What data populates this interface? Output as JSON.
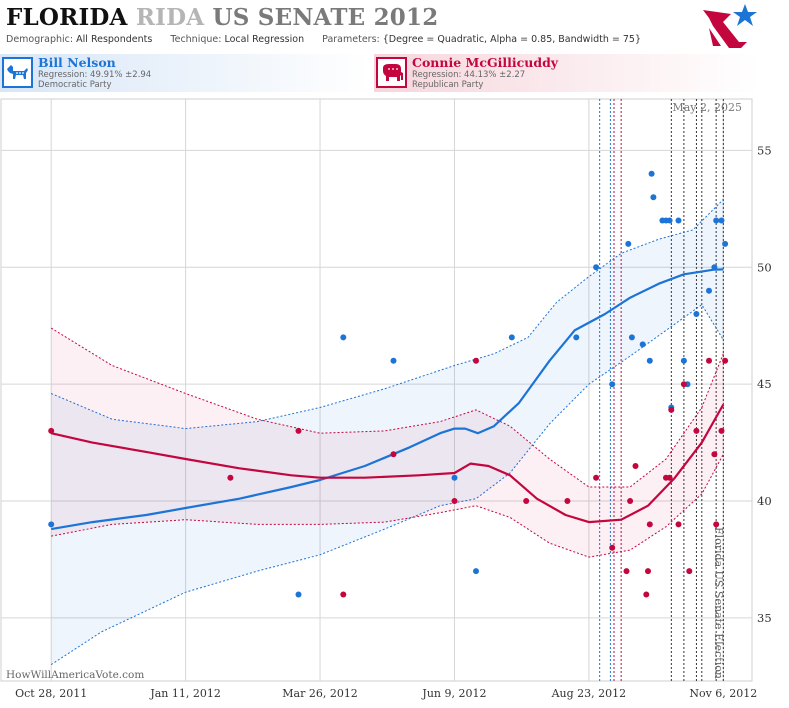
{
  "header": {
    "title_state": "FLORIDA",
    "title_ghost": "RIDA",
    "title_race": "US SENATE 2012",
    "meta": {
      "demographic_label": "Demographic:",
      "demographic_value": "All Respondents",
      "technique_label": "Technique:",
      "technique_value": "Local Regression",
      "parameters_label": "Parameters:",
      "parameters_value": "{Degree = Quadratic, Alpha = 0.85, Bandwidth = 75}"
    }
  },
  "candidates": {
    "dem": {
      "name": "Bill Nelson",
      "regression": "Regression: 49.91% ±2.94",
      "party": "Democratic Party",
      "icon": "donkey-icon",
      "color": "#1c74d6"
    },
    "rep": {
      "name": "Connie McGillicuddy",
      "regression": "Regression: 44.13% ±2.27",
      "party": "Republican Party",
      "icon": "elephant-icon",
      "color": "#c4063f"
    }
  },
  "chart_data": {
    "type": "scatter",
    "date_label": "May 2, 2025",
    "event_label": "Florida US Senate Election",
    "watermark": "HowWillAmericaVote.com",
    "x_axis": {
      "range": [
        "2011-09-30",
        "2012-11-22"
      ],
      "ticks": [
        {
          "date": "2011-10-28",
          "label": "Oct 28, 2011"
        },
        {
          "date": "2012-01-11",
          "label": "Jan 11, 2012"
        },
        {
          "date": "2012-03-26",
          "label": "Mar 26, 2012"
        },
        {
          "date": "2012-06-09",
          "label": "Jun 9, 2012"
        },
        {
          "date": "2012-08-23",
          "label": "Aug 23, 2012"
        },
        {
          "date": "2012-11-06",
          "label": "Nov 6, 2012"
        }
      ]
    },
    "y_axis": {
      "range": [
        32.3,
        57.2
      ],
      "ticks": [
        35,
        40,
        45,
        50,
        55
      ],
      "side": "right",
      "grid": true
    },
    "vertical_lines": [
      {
        "date": "2012-08-29",
        "color": "#1c74d6"
      },
      {
        "date": "2012-09-04",
        "color": "#1c74d6"
      },
      {
        "date": "2012-09-06",
        "color": "#c4063f"
      },
      {
        "date": "2012-09-10",
        "color": "#c4063f"
      },
      {
        "date": "2012-10-08",
        "color": "#333333"
      },
      {
        "date": "2012-10-15",
        "color": "#333333"
      },
      {
        "date": "2012-10-22",
        "color": "#333333"
      },
      {
        "date": "2012-10-25",
        "color": "#333333"
      },
      {
        "date": "2012-11-02",
        "color": "#333333"
      },
      {
        "date": "2012-11-06",
        "color": "#333333"
      }
    ],
    "series": [
      {
        "name": "Bill Nelson",
        "color": "#1c74d6",
        "points": [
          [
            "2011-10-28",
            39
          ],
          [
            "2012-03-14",
            36
          ],
          [
            "2012-04-08",
            47
          ],
          [
            "2012-05-06",
            46
          ],
          [
            "2012-06-09",
            41
          ],
          [
            "2012-06-21",
            37
          ],
          [
            "2012-07-11",
            47
          ],
          [
            "2012-08-16",
            47
          ],
          [
            "2012-08-27",
            50
          ],
          [
            "2012-09-05",
            45
          ],
          [
            "2012-09-14",
            51
          ],
          [
            "2012-09-16",
            47
          ],
          [
            "2012-09-22",
            46.7
          ],
          [
            "2012-09-26",
            46
          ],
          [
            "2012-09-27",
            54
          ],
          [
            "2012-09-28",
            53
          ],
          [
            "2012-10-03",
            52
          ],
          [
            "2012-10-05",
            52
          ],
          [
            "2012-10-07",
            52
          ],
          [
            "2012-10-08",
            44
          ],
          [
            "2012-10-12",
            52
          ],
          [
            "2012-10-15",
            46
          ],
          [
            "2012-10-17",
            45
          ],
          [
            "2012-10-22",
            48
          ],
          [
            "2012-10-29",
            49
          ],
          [
            "2012-11-01",
            50
          ],
          [
            "2012-11-02",
            52
          ],
          [
            "2012-11-05",
            52
          ],
          [
            "2012-11-07",
            51
          ]
        ],
        "trend": [
          [
            "2011-10-28",
            38.8
          ],
          [
            "2011-11-20",
            39.1
          ],
          [
            "2011-12-20",
            39.4
          ],
          [
            "2012-01-11",
            39.7
          ],
          [
            "2012-02-10",
            40.1
          ],
          [
            "2012-03-10",
            40.6
          ],
          [
            "2012-03-26",
            40.9
          ],
          [
            "2012-04-20",
            41.5
          ],
          [
            "2012-05-15",
            42.3
          ],
          [
            "2012-06-01",
            42.9
          ],
          [
            "2012-06-09",
            43.1
          ],
          [
            "2012-06-15",
            43.1
          ],
          [
            "2012-06-22",
            42.9
          ],
          [
            "2012-07-01",
            43.2
          ],
          [
            "2012-07-15",
            44.2
          ],
          [
            "2012-08-01",
            46.0
          ],
          [
            "2012-08-15",
            47.3
          ],
          [
            "2012-09-01",
            48.0
          ],
          [
            "2012-09-15",
            48.7
          ],
          [
            "2012-10-01",
            49.3
          ],
          [
            "2012-10-15",
            49.7
          ],
          [
            "2012-11-01",
            49.9
          ],
          [
            "2012-11-06",
            49.91
          ]
        ],
        "band_upper": [
          [
            "2011-10-28",
            44.6
          ],
          [
            "2011-12-01",
            43.5
          ],
          [
            "2012-01-11",
            43.1
          ],
          [
            "2012-02-20",
            43.4
          ],
          [
            "2012-03-26",
            44.0
          ],
          [
            "2012-05-01",
            44.8
          ],
          [
            "2012-06-09",
            45.8
          ],
          [
            "2012-07-01",
            46.3
          ],
          [
            "2012-07-20",
            47.0
          ],
          [
            "2012-08-05",
            48.5
          ],
          [
            "2012-08-23",
            49.6
          ],
          [
            "2012-09-10",
            50.6
          ],
          [
            "2012-10-01",
            51.2
          ],
          [
            "2012-10-20",
            51.6
          ],
          [
            "2012-11-06",
            52.9
          ]
        ],
        "band_lower": [
          [
            "2011-10-28",
            33.0
          ],
          [
            "2011-11-25",
            34.4
          ],
          [
            "2012-01-11",
            36.1
          ],
          [
            "2012-02-20",
            37.0
          ],
          [
            "2012-03-26",
            37.7
          ],
          [
            "2012-05-01",
            38.8
          ],
          [
            "2012-06-01",
            39.8
          ],
          [
            "2012-06-21",
            40.1
          ],
          [
            "2012-07-10",
            41.2
          ],
          [
            "2012-08-01",
            43.3
          ],
          [
            "2012-08-23",
            45.0
          ],
          [
            "2012-09-15",
            46.2
          ],
          [
            "2012-10-05",
            47.3
          ],
          [
            "2012-10-25",
            48.4
          ],
          [
            "2012-11-06",
            46.9
          ]
        ]
      },
      {
        "name": "Connie McGillicuddy",
        "color": "#c4063f",
        "points": [
          [
            "2011-10-28",
            43
          ],
          [
            "2012-02-05",
            41
          ],
          [
            "2012-03-14",
            43
          ],
          [
            "2012-04-08",
            36
          ],
          [
            "2012-05-06",
            42
          ],
          [
            "2012-06-09",
            40
          ],
          [
            "2012-06-21",
            46
          ],
          [
            "2012-07-19",
            40
          ],
          [
            "2012-08-11",
            40
          ],
          [
            "2012-08-27",
            41
          ],
          [
            "2012-09-05",
            38
          ],
          [
            "2012-09-13",
            37
          ],
          [
            "2012-09-15",
            40
          ],
          [
            "2012-09-18",
            41.5
          ],
          [
            "2012-09-24",
            36
          ],
          [
            "2012-09-25",
            37
          ],
          [
            "2012-09-26",
            39
          ],
          [
            "2012-10-05",
            41
          ],
          [
            "2012-10-07",
            41
          ],
          [
            "2012-10-08",
            43.9
          ],
          [
            "2012-10-12",
            39
          ],
          [
            "2012-10-15",
            45
          ],
          [
            "2012-10-18",
            37
          ],
          [
            "2012-10-22",
            43
          ],
          [
            "2012-10-29",
            46
          ],
          [
            "2012-11-01",
            42
          ],
          [
            "2012-11-02",
            39
          ],
          [
            "2012-11-05",
            43
          ],
          [
            "2012-11-07",
            46
          ]
        ],
        "trend": [
          [
            "2011-10-28",
            42.9
          ],
          [
            "2011-11-20",
            42.5
          ],
          [
            "2011-12-20",
            42.1
          ],
          [
            "2012-01-11",
            41.8
          ],
          [
            "2012-02-10",
            41.4
          ],
          [
            "2012-03-10",
            41.1
          ],
          [
            "2012-03-26",
            41.0
          ],
          [
            "2012-04-20",
            41.0
          ],
          [
            "2012-05-20",
            41.1
          ],
          [
            "2012-06-09",
            41.2
          ],
          [
            "2012-06-18",
            41.6
          ],
          [
            "2012-06-28",
            41.5
          ],
          [
            "2012-07-10",
            41.1
          ],
          [
            "2012-07-25",
            40.1
          ],
          [
            "2012-08-10",
            39.4
          ],
          [
            "2012-08-23",
            39.1
          ],
          [
            "2012-09-10",
            39.2
          ],
          [
            "2012-09-25",
            39.8
          ],
          [
            "2012-10-10",
            41.0
          ],
          [
            "2012-10-25",
            42.5
          ],
          [
            "2012-11-06",
            44.13
          ]
        ],
        "band_upper": [
          [
            "2011-10-28",
            47.4
          ],
          [
            "2011-12-01",
            45.8
          ],
          [
            "2012-01-11",
            44.6
          ],
          [
            "2012-02-20",
            43.5
          ],
          [
            "2012-03-26",
            42.9
          ],
          [
            "2012-05-01",
            43.0
          ],
          [
            "2012-06-01",
            43.4
          ],
          [
            "2012-06-21",
            43.9
          ],
          [
            "2012-07-10",
            43.2
          ],
          [
            "2012-08-01",
            41.8
          ],
          [
            "2012-08-23",
            40.6
          ],
          [
            "2012-09-15",
            40.6
          ],
          [
            "2012-10-05",
            41.8
          ],
          [
            "2012-10-25",
            44.0
          ],
          [
            "2012-11-06",
            46.3
          ]
        ],
        "band_lower": [
          [
            "2011-10-28",
            38.5
          ],
          [
            "2011-12-01",
            39.0
          ],
          [
            "2012-01-11",
            39.2
          ],
          [
            "2012-02-20",
            39.0
          ],
          [
            "2012-03-26",
            39.0
          ],
          [
            "2012-05-01",
            39.1
          ],
          [
            "2012-06-01",
            39.5
          ],
          [
            "2012-06-21",
            39.8
          ],
          [
            "2012-07-10",
            39.3
          ],
          [
            "2012-08-01",
            38.2
          ],
          [
            "2012-08-23",
            37.6
          ],
          [
            "2012-09-15",
            37.9
          ],
          [
            "2012-10-05",
            38.9
          ],
          [
            "2012-10-25",
            40.3
          ],
          [
            "2012-11-06",
            42.0
          ]
        ]
      }
    ]
  }
}
